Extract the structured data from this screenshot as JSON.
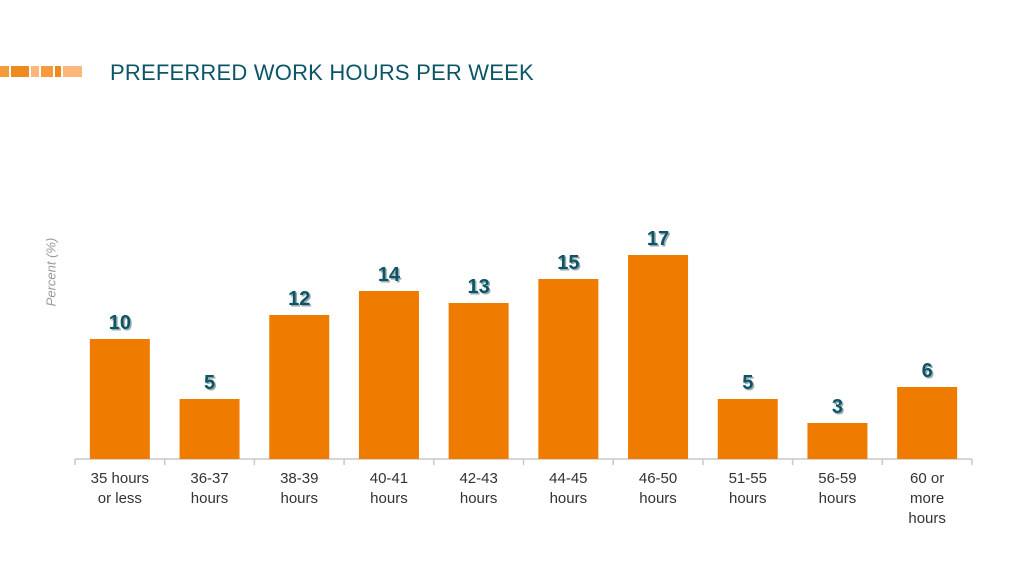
{
  "title": "PREFERRED WORK HOURS PER WEEK",
  "colors": {
    "bar": "#ef7c00",
    "title": "#0b5566",
    "value_label": "#0b5566",
    "axis": "#c8c8c8",
    "brand_bar": [
      "#f59b3d",
      "#ee8a1e",
      "#fbb77a"
    ]
  },
  "chart_data": {
    "type": "bar",
    "title": "PREFERRED WORK HOURS PER WEEK",
    "xlabel": "",
    "ylabel": "Percent (%)",
    "categories": [
      [
        "35 hours",
        "or less"
      ],
      [
        "36-37",
        "hours"
      ],
      [
        "38-39",
        "hours"
      ],
      [
        "40-41",
        "hours"
      ],
      [
        "42-43",
        "hours"
      ],
      [
        "44-45",
        "hours"
      ],
      [
        "46-50",
        "hours"
      ],
      [
        "51-55",
        "hours"
      ],
      [
        "56-59",
        "hours"
      ],
      [
        "60 or",
        "more",
        "hours"
      ]
    ],
    "values": [
      10,
      5,
      12,
      14,
      13,
      15,
      17,
      5,
      3,
      6
    ],
    "ylim": [
      0,
      17
    ],
    "data_labels": true,
    "grid": false,
    "legend": "none"
  }
}
